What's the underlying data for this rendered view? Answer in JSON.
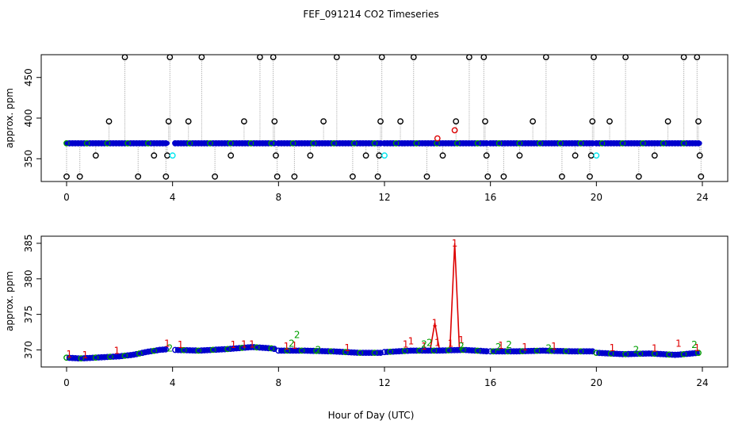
{
  "chart_data": [
    {
      "type": "scatter",
      "title": "FEF_091214  CO2 Timeseries",
      "xlabel": "",
      "ylabel": "approx. ppm",
      "xlim": [
        0,
        24
      ],
      "ylim": [
        322,
        478
      ],
      "x_ticks": [
        0,
        4,
        8,
        12,
        16,
        20,
        24
      ],
      "y_ticks": [
        350,
        400,
        450
      ],
      "baseline_ppm": 369,
      "baseline_segments": [
        [
          0,
          3.8
        ],
        [
          4.1,
          7.9
        ],
        [
          8.0,
          11.9
        ],
        [
          12.0,
          15.9
        ],
        [
          16.0,
          19.9
        ],
        [
          20.0,
          23.9
        ]
      ],
      "spikes": [
        {
          "x": 0.0,
          "y": 328
        },
        {
          "x": 0.5,
          "y": 328
        },
        {
          "x": 1.1,
          "y": 354
        },
        {
          "x": 1.6,
          "y": 396
        },
        {
          "x": 2.2,
          "y": 475
        },
        {
          "x": 2.7,
          "y": 328
        },
        {
          "x": 3.3,
          "y": 354
        },
        {
          "x": 3.75,
          "y": 328
        },
        {
          "x": 3.85,
          "y": 396
        },
        {
          "x": 3.9,
          "y": 475
        },
        {
          "x": 3.8,
          "y": 354
        },
        {
          "x": 4.6,
          "y": 396
        },
        {
          "x": 5.1,
          "y": 475
        },
        {
          "x": 5.6,
          "y": 328
        },
        {
          "x": 6.2,
          "y": 354
        },
        {
          "x": 6.7,
          "y": 396
        },
        {
          "x": 7.3,
          "y": 475
        },
        {
          "x": 7.8,
          "y": 475
        },
        {
          "x": 7.85,
          "y": 396
        },
        {
          "x": 7.9,
          "y": 354
        },
        {
          "x": 7.95,
          "y": 328
        },
        {
          "x": 8.6,
          "y": 328
        },
        {
          "x": 9.2,
          "y": 354
        },
        {
          "x": 9.7,
          "y": 396
        },
        {
          "x": 10.2,
          "y": 475
        },
        {
          "x": 10.8,
          "y": 328
        },
        {
          "x": 11.3,
          "y": 354
        },
        {
          "x": 11.75,
          "y": 328
        },
        {
          "x": 11.85,
          "y": 396
        },
        {
          "x": 11.9,
          "y": 475
        },
        {
          "x": 11.8,
          "y": 354
        },
        {
          "x": 12.6,
          "y": 396
        },
        {
          "x": 13.1,
          "y": 475
        },
        {
          "x": 13.6,
          "y": 328
        },
        {
          "x": 14.2,
          "y": 354
        },
        {
          "x": 14.7,
          "y": 396
        },
        {
          "x": 15.2,
          "y": 475
        },
        {
          "x": 15.75,
          "y": 475
        },
        {
          "x": 15.8,
          "y": 396
        },
        {
          "x": 15.85,
          "y": 354
        },
        {
          "x": 15.9,
          "y": 328
        },
        {
          "x": 16.5,
          "y": 328
        },
        {
          "x": 17.1,
          "y": 354
        },
        {
          "x": 17.6,
          "y": 396
        },
        {
          "x": 18.1,
          "y": 475
        },
        {
          "x": 18.7,
          "y": 328
        },
        {
          "x": 19.2,
          "y": 354
        },
        {
          "x": 19.75,
          "y": 328
        },
        {
          "x": 19.85,
          "y": 396
        },
        {
          "x": 19.9,
          "y": 475
        },
        {
          "x": 19.8,
          "y": 354
        },
        {
          "x": 20.5,
          "y": 396
        },
        {
          "x": 21.1,
          "y": 475
        },
        {
          "x": 21.6,
          "y": 328
        },
        {
          "x": 22.2,
          "y": 354
        },
        {
          "x": 22.7,
          "y": 396
        },
        {
          "x": 23.3,
          "y": 475
        },
        {
          "x": 23.8,
          "y": 475
        },
        {
          "x": 23.85,
          "y": 396
        },
        {
          "x": 23.9,
          "y": 354
        },
        {
          "x": 23.95,
          "y": 328
        }
      ],
      "cyan_points": [
        {
          "x": 4.0,
          "y": 354
        },
        {
          "x": 12.0,
          "y": 354
        },
        {
          "x": 20.0,
          "y": 354
        }
      ],
      "red_points": [
        {
          "x": 14.65,
          "y": 385
        },
        {
          "x": 14.0,
          "y": 375
        }
      ],
      "colors": {
        "spike": "#000000",
        "line": "#999999",
        "baseline": "#0000cc",
        "alt": "#009900",
        "highlight": "#00e5ee",
        "red": "#dd0000"
      }
    },
    {
      "type": "scatter",
      "title": "",
      "xlabel": "Hour of Day (UTC)",
      "ylabel": "approx. ppm",
      "xlim": [
        0,
        24
      ],
      "ylim": [
        367.6,
        386.0
      ],
      "x_ticks": [
        0,
        4,
        8,
        12,
        16,
        20,
        24
      ],
      "y_ticks": [
        370,
        375,
        380,
        385
      ],
      "series": [
        {
          "name": "baseline",
          "points": [
            [
              0,
              368.9
            ],
            [
              0.5,
              368.8
            ],
            [
              1,
              368.9
            ],
            [
              1.5,
              369.0
            ],
            [
              2,
              369.1
            ],
            [
              2.5,
              369.3
            ],
            [
              3,
              369.7
            ],
            [
              3.5,
              370.0
            ],
            [
              3.8,
              370.1
            ],
            [
              4.1,
              370.0
            ],
            [
              5,
              369.9
            ],
            [
              6,
              370.1
            ],
            [
              7,
              370.4
            ],
            [
              7.8,
              370.2
            ],
            [
              8.0,
              369.9
            ],
            [
              9,
              369.9
            ],
            [
              10,
              369.8
            ],
            [
              11,
              369.6
            ],
            [
              11.9,
              369.6
            ],
            [
              12.0,
              369.7
            ],
            [
              13,
              369.9
            ],
            [
              14,
              369.9
            ],
            [
              15,
              370.0
            ],
            [
              15.9,
              369.8
            ],
            [
              16.0,
              369.8
            ],
            [
              17,
              369.8
            ],
            [
              18,
              369.9
            ],
            [
              19,
              369.8
            ],
            [
              19.9,
              369.8
            ],
            [
              20.0,
              369.6
            ],
            [
              21,
              369.4
            ],
            [
              22,
              369.5
            ],
            [
              23,
              369.3
            ],
            [
              23.9,
              369.6
            ]
          ]
        },
        {
          "name": "1",
          "points": [
            [
              0.1,
              369.4
            ],
            [
              0.7,
              369.3
            ],
            [
              1.9,
              369.9
            ],
            [
              3.8,
              370.9
            ],
            [
              4.3,
              370.7
            ],
            [
              6.3,
              370.7
            ],
            [
              6.7,
              370.8
            ],
            [
              7.0,
              370.8
            ],
            [
              8.3,
              370.5
            ],
            [
              8.6,
              370.6
            ],
            [
              10.6,
              370.3
            ],
            [
              12.8,
              370.8
            ],
            [
              13.0,
              371.2
            ],
            [
              13.5,
              370.5
            ],
            [
              13.9,
              373.8
            ],
            [
              14.0,
              371.0
            ],
            [
              14.5,
              370.9
            ],
            [
              14.65,
              385.0
            ],
            [
              14.9,
              371.4
            ],
            [
              16.4,
              370.6
            ],
            [
              17.3,
              370.4
            ],
            [
              18.4,
              370.5
            ],
            [
              20.6,
              370.3
            ],
            [
              22.2,
              370.2
            ],
            [
              23.1,
              370.9
            ],
            [
              23.8,
              370.3
            ]
          ]
        },
        {
          "name": "2",
          "points": [
            [
              3.9,
              370.2
            ],
            [
              8.5,
              370.9
            ],
            [
              8.7,
              372.1
            ],
            [
              9.5,
              370.0
            ],
            [
              13.5,
              370.8
            ],
            [
              13.7,
              371.0
            ],
            [
              14.9,
              370.5
            ],
            [
              16.3,
              370.4
            ],
            [
              16.7,
              370.7
            ],
            [
              18.2,
              370.2
            ],
            [
              21.5,
              370.0
            ],
            [
              23.7,
              370.7
            ]
          ]
        }
      ],
      "annotations": {
        "peak_label": "1",
        "peak_time": 14.65,
        "peak_ppm": 385.0
      }
    }
  ]
}
